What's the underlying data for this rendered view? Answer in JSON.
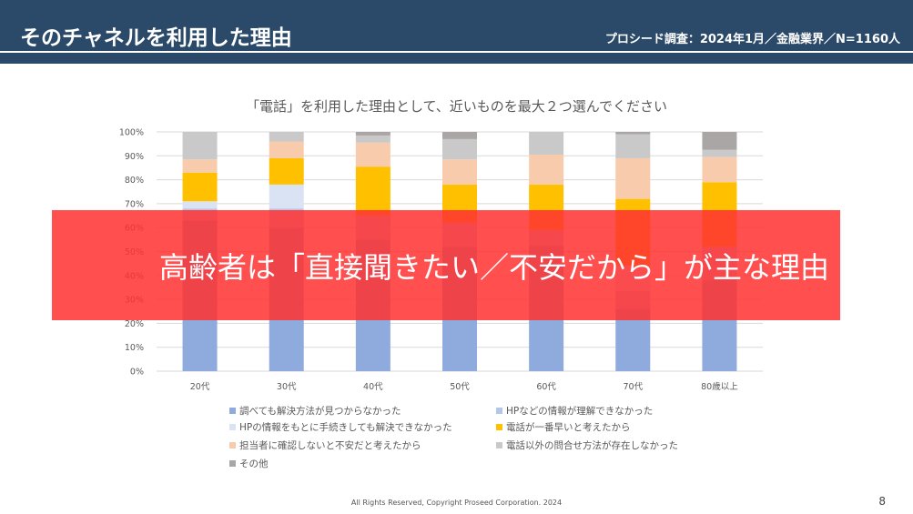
{
  "header": {
    "title": "そのチャネルを利用した理由",
    "survey": "プロシード調査：2024年1月／金融業界／N=1160人"
  },
  "overlay_text": "高齢者は「直接聞きたい／不安だから」が主な理由",
  "footer": "All Rights Reserved, Copyright Proseed Corporation. 2024",
  "page_number": "8",
  "chart_data": {
    "type": "bar",
    "stacked": true,
    "title": "「電話」を利用した理由として、近いものを最大２つ選んでください",
    "categories": [
      "20代",
      "30代",
      "40代",
      "50代",
      "60代",
      "70代",
      "80歳以上"
    ],
    "yticks": [
      "0%",
      "10%",
      "20%",
      "30%",
      "40%",
      "50%",
      "60%",
      "70%",
      "80%",
      "90%",
      "100%"
    ],
    "ylim": [
      0,
      100
    ],
    "legend_position": "bottom",
    "series": [
      {
        "name": "調べても解決方法が見つからなかった",
        "color": "#8faadc",
        "values": [
          63,
          60,
          55,
          52,
          52.5,
          26,
          38
        ]
      },
      {
        "name": "HPなどの情報が理解できなかった",
        "color": "#b4c7e7",
        "values": [
          5,
          8,
          10,
          10,
          6.5,
          7.5,
          14
        ]
      },
      {
        "name": "HPの情報をもとに手続きしても解決できなかった",
        "color": "#dae3f3",
        "values": [
          3,
          10,
          0,
          0,
          0,
          10.5,
          0
        ]
      },
      {
        "name": "電話が一番早いと考えたから",
        "color": "#ffc000",
        "values": [
          12,
          11,
          20.5,
          16,
          19,
          28,
          27
        ]
      },
      {
        "name": "担当者に確認しないと不安だと考えたから",
        "color": "#f8cbad",
        "values": [
          5.5,
          7,
          10,
          10.5,
          12.5,
          17,
          10.5
        ]
      },
      {
        "name": "電話以外の問合せ方法が存在しなかった",
        "color": "#c9c9c9",
        "values": [
          11.5,
          4,
          3,
          8.5,
          9.5,
          10,
          3
        ]
      },
      {
        "name": "その他",
        "color": "#aaa6a6",
        "values": [
          0,
          0,
          1.5,
          3,
          0,
          1,
          7.5
        ]
      }
    ]
  }
}
